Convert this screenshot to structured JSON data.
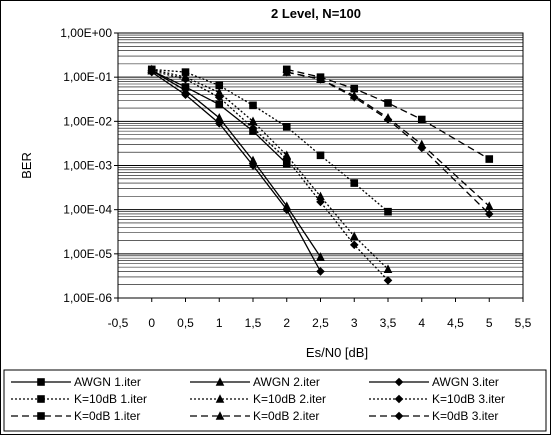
{
  "chart_data": {
    "type": "line",
    "title": "2 Level, N=100",
    "xlabel": "Es/N0 [dB]",
    "ylabel": "BER",
    "xlim": [
      -0.5,
      5.5
    ],
    "x_ticks": [
      -0.5,
      0,
      0.5,
      1,
      1.5,
      2,
      2.5,
      3,
      3.5,
      4,
      4.5,
      5,
      5.5
    ],
    "x_tick_labels": [
      "-0,5",
      "0",
      "0,5",
      "1",
      "1,5",
      "2",
      "2,5",
      "3",
      "3,5",
      "4",
      "4,5",
      "5",
      "5,5"
    ],
    "ylim": [
      1e-06,
      1
    ],
    "y_scale": "log",
    "y_ticks": [
      1,
      0.1,
      0.01,
      0.001,
      0.0001,
      1e-05,
      1e-06
    ],
    "y_tick_labels": [
      "1,00E+00",
      "1,00E-01",
      "1,00E-02",
      "1,00E-03",
      "1,00E-04",
      "1,00E-05",
      "1,00E-06"
    ],
    "grid": "horizontal, major and minor",
    "legend_position": "bottom",
    "series": [
      {
        "name": "AWGN 1.iter",
        "line": "solid",
        "marker": "square",
        "color": "#000000",
        "x": [
          0,
          0.5,
          1,
          1.5,
          2
        ],
        "y": [
          0.14,
          0.06,
          0.024,
          0.006,
          0.0011
        ]
      },
      {
        "name": "AWGN 2.iter",
        "line": "solid",
        "marker": "triangle",
        "color": "#000000",
        "x": [
          0,
          0.5,
          1,
          1.5,
          2,
          2.5
        ],
        "y": [
          0.14,
          0.05,
          0.012,
          0.0013,
          0.00012,
          8.5e-06
        ]
      },
      {
        "name": "AWGN 3.iter",
        "line": "solid",
        "marker": "diamond",
        "color": "#000000",
        "x": [
          0,
          0.5,
          1,
          1.5,
          2,
          2.5
        ],
        "y": [
          0.13,
          0.04,
          0.009,
          0.001,
          0.0001,
          4e-06
        ]
      },
      {
        "name": "K=10dB 1.iter",
        "line": "dotted",
        "marker": "square",
        "color": "#000000",
        "x": [
          0,
          0.5,
          1,
          1.5,
          2,
          2.5,
          3,
          3.5
        ],
        "y": [
          0.15,
          0.13,
          0.065,
          0.023,
          0.0075,
          0.0017,
          0.0004,
          9e-05
        ]
      },
      {
        "name": "K=10dB 2.iter",
        "line": "dotted",
        "marker": "triangle",
        "color": "#000000",
        "x": [
          0,
          0.5,
          1,
          1.5,
          2,
          2.5,
          3,
          3.5
        ],
        "y": [
          0.15,
          0.1,
          0.045,
          0.01,
          0.0017,
          0.0002,
          2.5e-05,
          4.5e-06
        ]
      },
      {
        "name": "K=10dB 3.iter",
        "line": "dotted",
        "marker": "diamond",
        "color": "#000000",
        "x": [
          0,
          0.5,
          1,
          1.5,
          2,
          2.5,
          3,
          3.5
        ],
        "y": [
          0.14,
          0.09,
          0.035,
          0.007,
          0.0014,
          0.00015,
          1.6e-05,
          2.5e-06
        ]
      },
      {
        "name": "K=0dB 1.iter",
        "line": "dashed",
        "marker": "square",
        "color": "#000000",
        "x": [
          2,
          2.5,
          3,
          3.5,
          4,
          5
        ],
        "y": [
          0.15,
          0.1,
          0.055,
          0.026,
          0.011,
          0.0014
        ]
      },
      {
        "name": "K=0dB 2.iter",
        "line": "dashed",
        "marker": "triangle",
        "color": "#000000",
        "x": [
          2,
          2.5,
          3,
          3.5,
          4,
          5
        ],
        "y": [
          0.13,
          0.09,
          0.038,
          0.012,
          0.003,
          0.00012
        ]
      },
      {
        "name": "K=0dB 3.iter",
        "line": "dashed",
        "marker": "diamond",
        "color": "#000000",
        "x": [
          2,
          2.5,
          3,
          3.5,
          4,
          5
        ],
        "y": [
          0.13,
          0.09,
          0.035,
          0.011,
          0.0025,
          8e-05
        ]
      }
    ]
  }
}
